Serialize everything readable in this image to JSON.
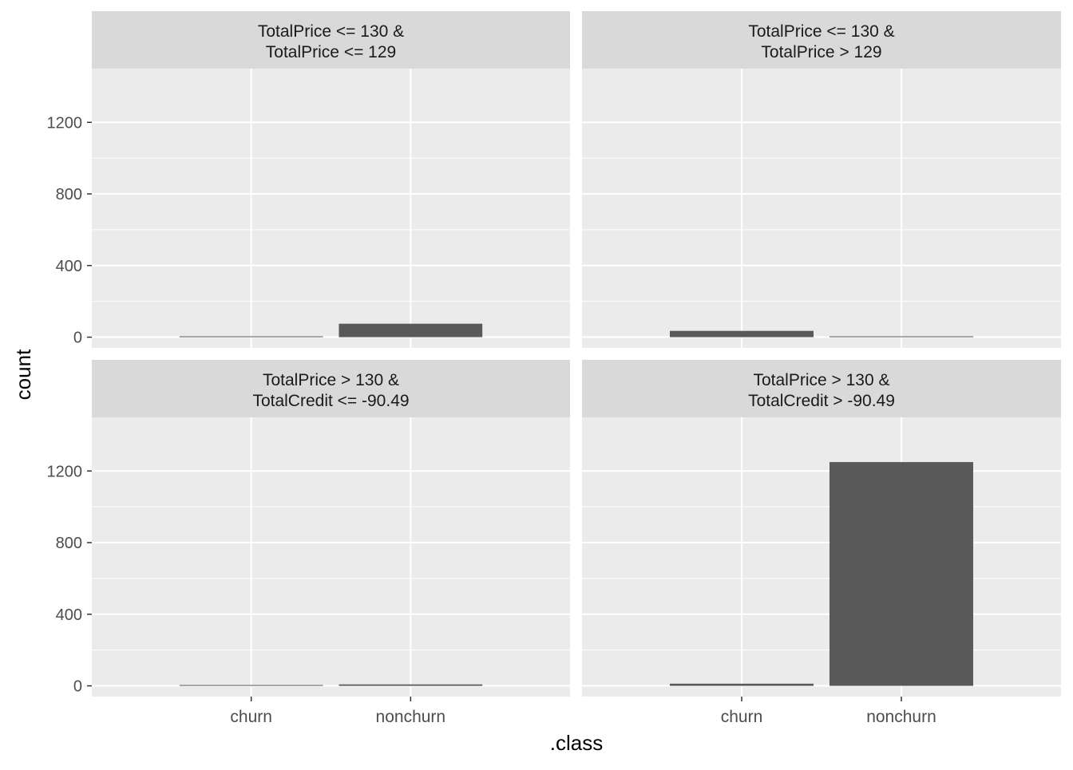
{
  "chart_data": {
    "type": "bar",
    "facet_layout": "2x2",
    "xlabel": ".class",
    "ylabel": "count",
    "categories": [
      "churn",
      "nonchurn"
    ],
    "y_ticks": [
      0,
      400,
      800,
      1200
    ],
    "ylim": [
      -60,
      1500
    ],
    "grid": true,
    "panels": [
      {
        "strip_line1": "TotalPrice <= 130 &",
        "strip_line2": "TotalPrice <= 129",
        "values": [
          2,
          75
        ]
      },
      {
        "strip_line1": "TotalPrice <= 130 &",
        "strip_line2": "TotalPrice > 129",
        "values": [
          35,
          2
        ]
      },
      {
        "strip_line1": "TotalPrice > 130 &",
        "strip_line2": "TotalCredit <= -90.49",
        "values": [
          2,
          8
        ]
      },
      {
        "strip_line1": "TotalPrice > 130 &",
        "strip_line2": "TotalCredit > -90.49",
        "values": [
          12,
          1250
        ]
      }
    ],
    "colors": {
      "bar": "#595959",
      "panel_bg": "#EBEBEB",
      "strip_bg": "#D9D9D9",
      "grid": "#FFFFFF",
      "text": "#4D4D4D",
      "title_text": "#000000",
      "strip_text": "#1A1A1A"
    }
  }
}
